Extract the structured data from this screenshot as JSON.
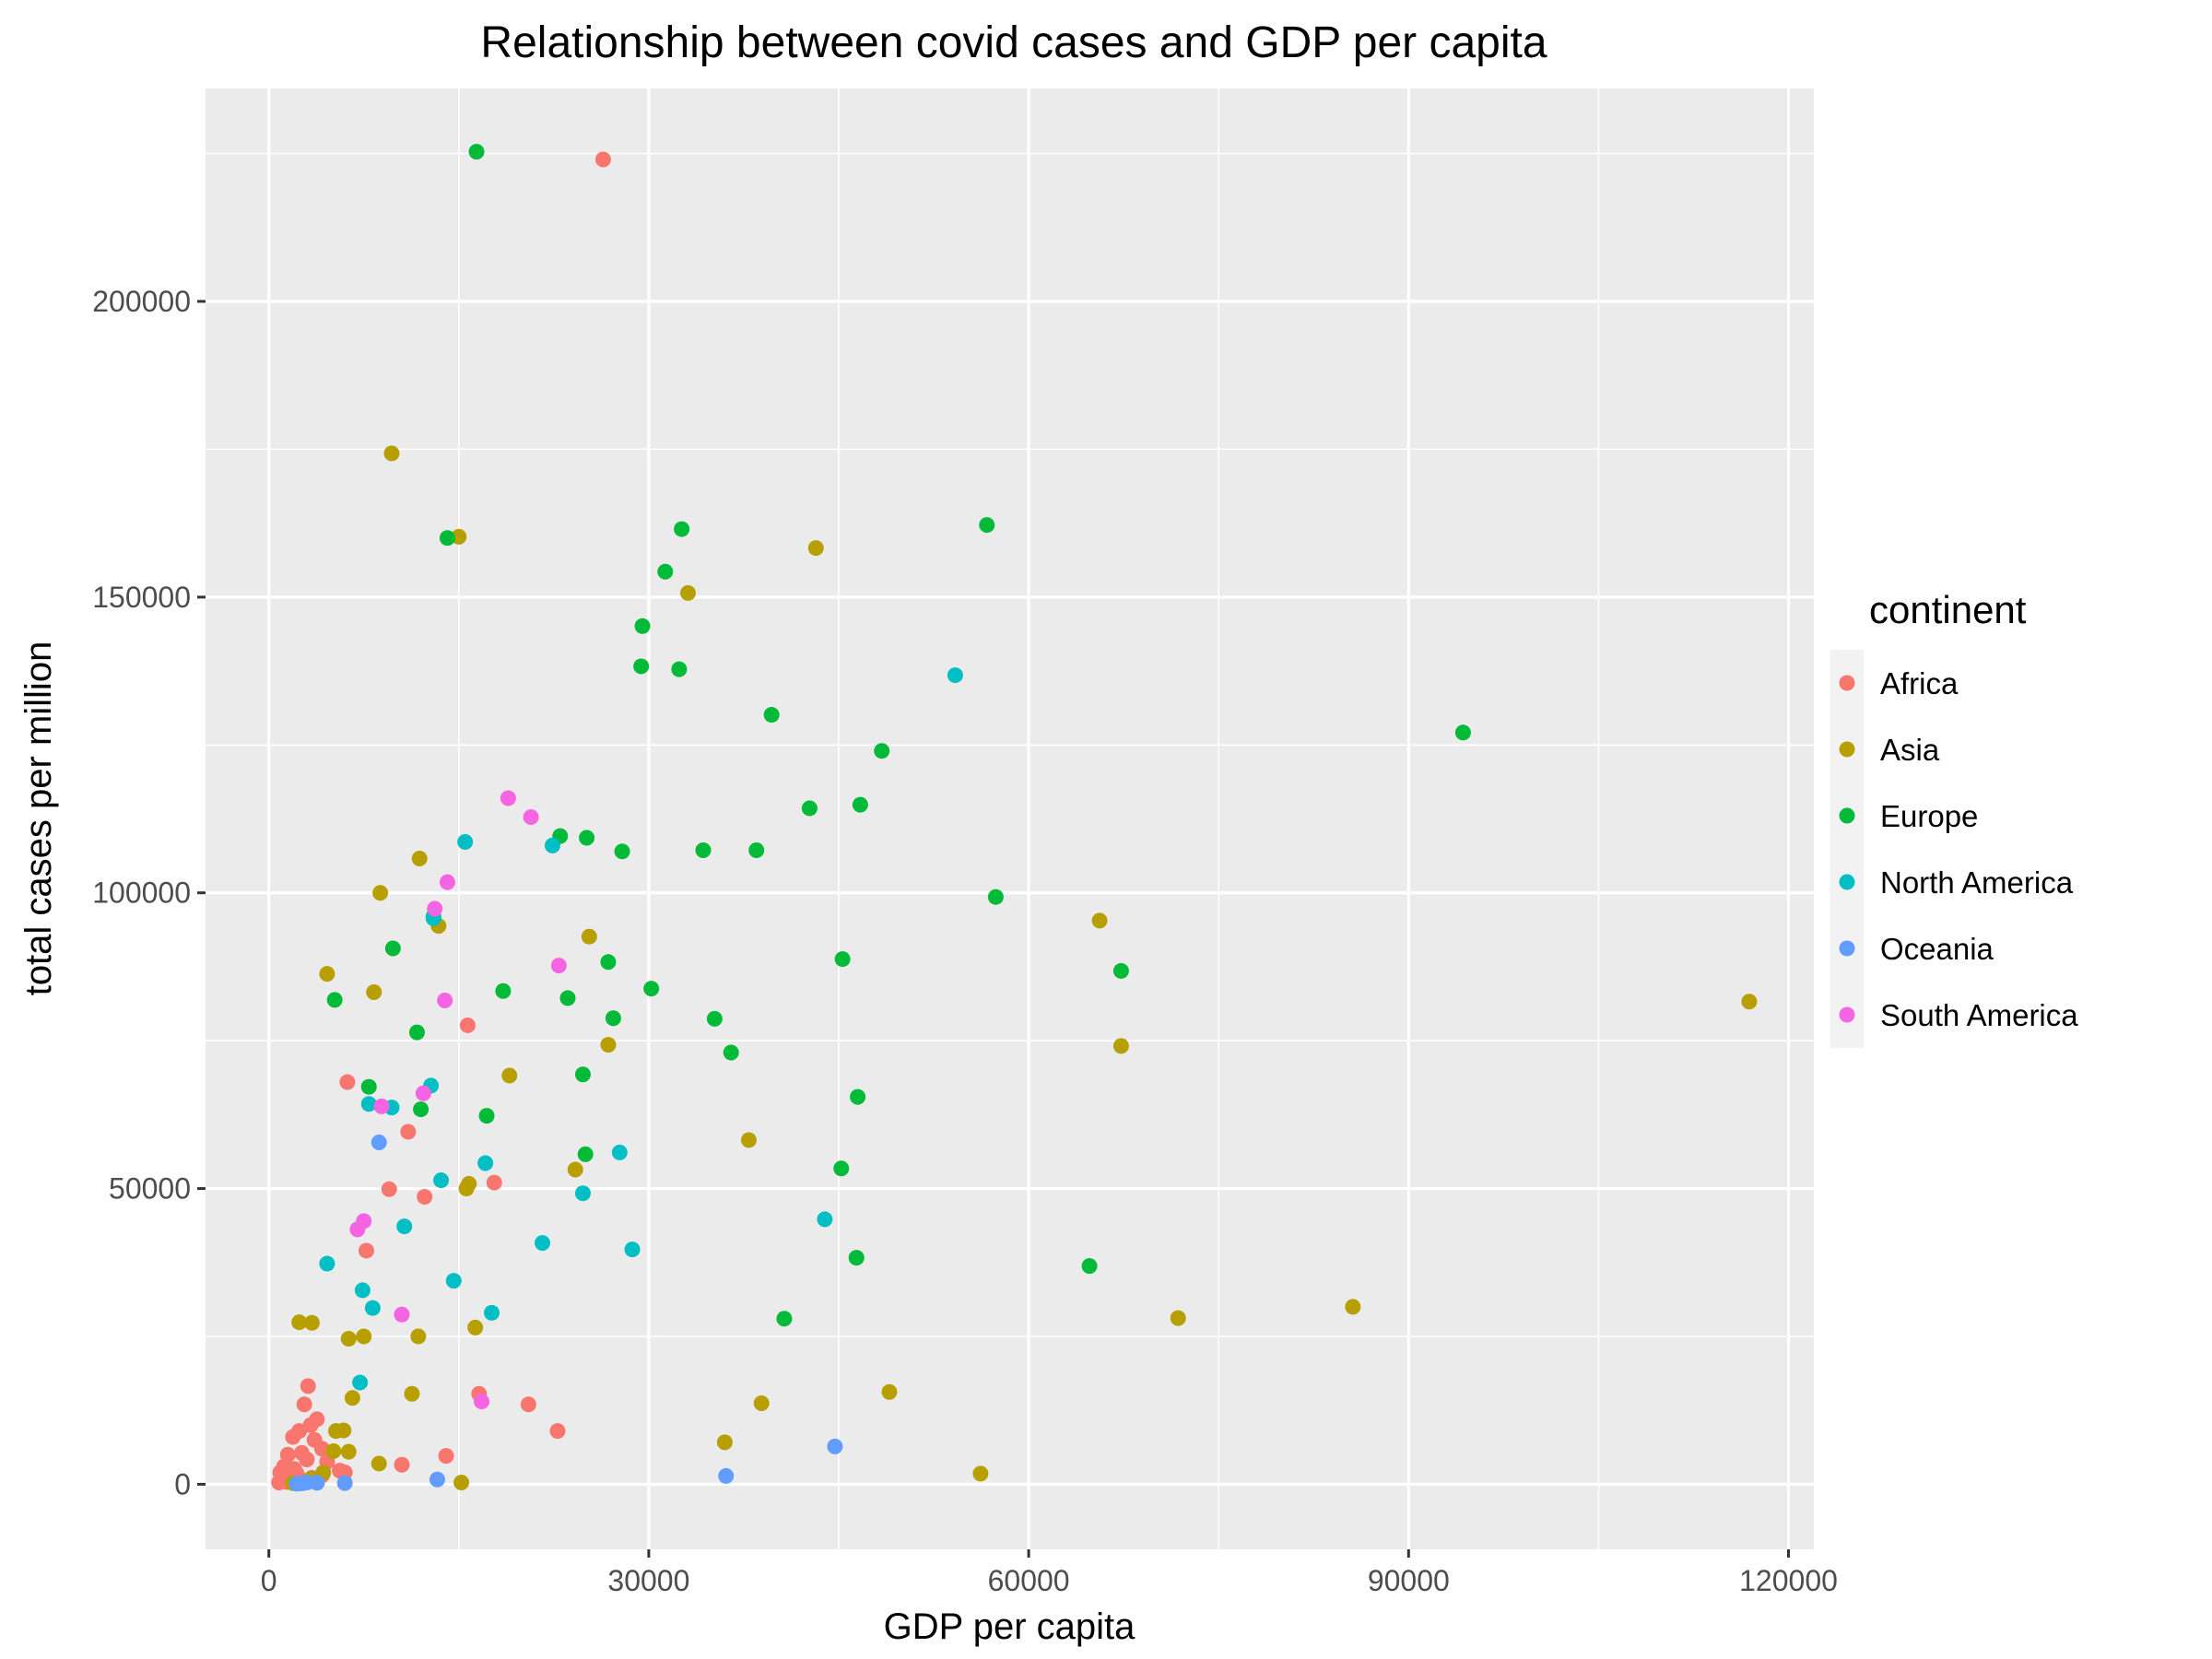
{
  "chart_data": {
    "type": "scatter",
    "title": "Relationship between covid cases and GDP per capita",
    "xlabel": "GDP per capita",
    "ylabel": "total cases per million",
    "xlim": [
      -5000,
      122000
    ],
    "ylim": [
      -11000,
      236000
    ],
    "x_ticks": [
      0,
      30000,
      60000,
      90000,
      120000
    ],
    "y_ticks": [
      0,
      50000,
      100000,
      150000,
      200000
    ],
    "grid": true,
    "legend_title": "continent",
    "legend_position": "right",
    "series": [
      {
        "name": "Africa",
        "color": "#F8766D",
        "points": [
          [
            26400,
            224000
          ],
          [
            15700,
            77600
          ],
          [
            6200,
            68000
          ],
          [
            11000,
            59600
          ],
          [
            17800,
            51000
          ],
          [
            9500,
            49900
          ],
          [
            12300,
            48600
          ],
          [
            7700,
            39500
          ],
          [
            16600,
            15300
          ],
          [
            20500,
            13500
          ],
          [
            22800,
            9000
          ],
          [
            10500,
            3300
          ],
          [
            14000,
            4800
          ],
          [
            3100,
            16600
          ],
          [
            2800,
            13500
          ],
          [
            3800,
            11000
          ],
          [
            3300,
            10000
          ],
          [
            2400,
            9000
          ],
          [
            1900,
            8000
          ],
          [
            3600,
            7500
          ],
          [
            4200,
            6000
          ],
          [
            2600,
            5300
          ],
          [
            1500,
            5000
          ],
          [
            3000,
            4200
          ],
          [
            4600,
            3800
          ],
          [
            1200,
            3000
          ],
          [
            2000,
            2600
          ],
          [
            5600,
            2300
          ],
          [
            900,
            2000
          ],
          [
            2200,
            1800
          ],
          [
            4200,
            1500
          ],
          [
            1700,
            1200
          ],
          [
            3400,
            1100
          ],
          [
            1100,
            800
          ],
          [
            2900,
            600
          ],
          [
            1400,
            400
          ],
          [
            800,
            300
          ],
          [
            2500,
            150
          ],
          [
            6000,
            2000
          ]
        ]
      },
      {
        "name": "Asia",
        "color": "#B79F00",
        "points": [
          [
            9700,
            174300
          ],
          [
            15000,
            160200
          ],
          [
            43200,
            158300
          ],
          [
            33100,
            150700
          ],
          [
            11900,
            105800
          ],
          [
            8800,
            100000
          ],
          [
            13400,
            94400
          ],
          [
            25300,
            92600
          ],
          [
            4600,
            86300
          ],
          [
            8300,
            83200
          ],
          [
            65600,
            95300
          ],
          [
            116900,
            81600
          ],
          [
            26800,
            74300
          ],
          [
            67300,
            74100
          ],
          [
            19000,
            69100
          ],
          [
            37900,
            58200
          ],
          [
            24200,
            53200
          ],
          [
            15600,
            50000
          ],
          [
            15800,
            50800
          ],
          [
            2400,
            27400
          ],
          [
            3400,
            27300
          ],
          [
            6300,
            24600
          ],
          [
            7500,
            25000
          ],
          [
            11800,
            25000
          ],
          [
            16300,
            26500
          ],
          [
            71800,
            28100
          ],
          [
            85600,
            30000
          ],
          [
            6600,
            14600
          ],
          [
            11300,
            15300
          ],
          [
            49000,
            15600
          ],
          [
            38900,
            13700
          ],
          [
            36000,
            7100
          ],
          [
            5300,
            9000
          ],
          [
            5900,
            9100
          ],
          [
            6300,
            5500
          ],
          [
            5100,
            5600
          ],
          [
            8700,
            3500
          ],
          [
            4300,
            2000
          ],
          [
            56200,
            1800
          ],
          [
            15200,
            300
          ],
          [
            1900,
            200
          ],
          [
            3300,
            900
          ]
        ]
      },
      {
        "name": "Europe",
        "color": "#00BA38",
        "points": [
          [
            16400,
            225300
          ],
          [
            14100,
            160000
          ],
          [
            32600,
            161500
          ],
          [
            56700,
            162200
          ],
          [
            31300,
            154300
          ],
          [
            29500,
            145100
          ],
          [
            29400,
            138300
          ],
          [
            32400,
            137800
          ],
          [
            39700,
            130100
          ],
          [
            48400,
            124000
          ],
          [
            94300,
            127100
          ],
          [
            42700,
            114300
          ],
          [
            46700,
            114900
          ],
          [
            23000,
            109600
          ],
          [
            25100,
            109300
          ],
          [
            27900,
            107000
          ],
          [
            34300,
            107200
          ],
          [
            38500,
            107200
          ],
          [
            57400,
            99300
          ],
          [
            13000,
            96000
          ],
          [
            9800,
            90600
          ],
          [
            26800,
            88300
          ],
          [
            45300,
            88800
          ],
          [
            67300,
            86800
          ],
          [
            5200,
            81900
          ],
          [
            18500,
            83400
          ],
          [
            23600,
            82200
          ],
          [
            30200,
            83800
          ],
          [
            35200,
            78700
          ],
          [
            27200,
            78800
          ],
          [
            11700,
            76400
          ],
          [
            36500,
            73000
          ],
          [
            24800,
            69300
          ],
          [
            7900,
            67200
          ],
          [
            12000,
            63400
          ],
          [
            17200,
            62300
          ],
          [
            46500,
            65500
          ],
          [
            25000,
            55800
          ],
          [
            45200,
            53400
          ],
          [
            46400,
            38300
          ],
          [
            64800,
            36900
          ],
          [
            40700,
            28000
          ]
        ]
      },
      {
        "name": "North America",
        "color": "#00BFC4",
        "points": [
          [
            54200,
            136800
          ],
          [
            15500,
            108600
          ],
          [
            22400,
            108000
          ],
          [
            13000,
            95700
          ],
          [
            12800,
            67400
          ],
          [
            7900,
            64300
          ],
          [
            9700,
            63700
          ],
          [
            27700,
            56100
          ],
          [
            17100,
            54300
          ],
          [
            13600,
            51400
          ],
          [
            24800,
            49200
          ],
          [
            10700,
            43600
          ],
          [
            43900,
            44800
          ],
          [
            21600,
            40800
          ],
          [
            28700,
            39700
          ],
          [
            4600,
            37300
          ],
          [
            14600,
            34400
          ],
          [
            7400,
            32800
          ],
          [
            8200,
            29800
          ],
          [
            17600,
            29000
          ],
          [
            7200,
            17200
          ]
        ]
      },
      {
        "name": "Oceania",
        "color": "#619CFF",
        "points": [
          [
            8700,
            57800
          ],
          [
            44700,
            6400
          ],
          [
            36100,
            1400
          ],
          [
            13300,
            800
          ],
          [
            6000,
            200
          ],
          [
            2200,
            100
          ],
          [
            3000,
            300
          ],
          [
            3800,
            250
          ],
          [
            2600,
            150
          ]
        ]
      },
      {
        "name": "South America",
        "color": "#F564E3",
        "points": [
          [
            18900,
            116000
          ],
          [
            20700,
            112800
          ],
          [
            14100,
            101800
          ],
          [
            13100,
            97300
          ],
          [
            13900,
            81800
          ],
          [
            22900,
            87700
          ],
          [
            12200,
            66100
          ],
          [
            8900,
            63900
          ],
          [
            7500,
            44500
          ],
          [
            7000,
            43100
          ],
          [
            10500,
            28700
          ],
          [
            16800,
            14000
          ]
        ]
      }
    ]
  }
}
